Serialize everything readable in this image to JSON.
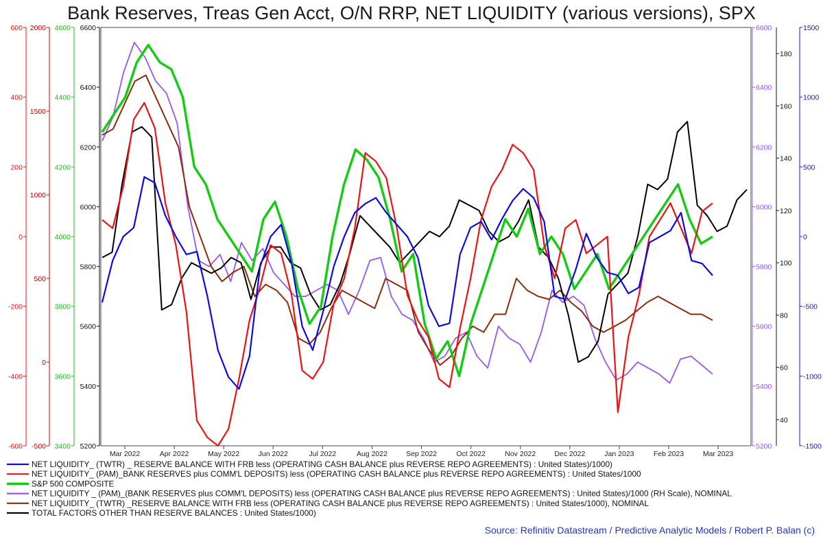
{
  "chart_data": {
    "type": "line",
    "title": "Bank Reserves, Treas Gen Acct, O/N RRP, NET LIQUIDITY (various versions), SPX",
    "x_labels": [
      "Mar 2022",
      "Apr 2022",
      "May 2022",
      "Jun 2022",
      "Jul 2022",
      "Aug 2022",
      "Sep 2022",
      "Oct 2022",
      "Nov 2022",
      "Dec 2022",
      "Jan 2023",
      "Feb 2023",
      "Mar 2023"
    ],
    "axes": [
      {
        "id": "a1",
        "side": "left",
        "color": "#ee1111",
        "min": -600,
        "max": 600,
        "ticks": [
          "600",
          "400",
          "200",
          "0",
          "-200",
          "-400",
          "-600"
        ]
      },
      {
        "id": "a2",
        "side": "left",
        "color": "#cc0000",
        "min": -500,
        "max": 2000,
        "ticks": [
          "2000",
          "1500",
          "1000",
          "500",
          "0",
          "-500"
        ]
      },
      {
        "id": "a3",
        "side": "left",
        "color": "#22bb22",
        "min": 3400,
        "max": 4600,
        "ticks": [
          "4600",
          "4400",
          "4200",
          "4000",
          "3800",
          "3600",
          "3400"
        ]
      },
      {
        "id": "a4",
        "side": "left",
        "color": "#111111",
        "min": 5200,
        "max": 6600,
        "ticks": [
          "6600",
          "6400",
          "6200",
          "6000",
          "5800",
          "5600",
          "5400",
          "5200"
        ]
      },
      {
        "id": "a5",
        "side": "right",
        "color": "#9955ee",
        "min": 5200,
        "max": 6600,
        "ticks": [
          "6600",
          "6400",
          "6200",
          "6000",
          "5800",
          "5600",
          "5400",
          "5200"
        ]
      },
      {
        "id": "a6",
        "side": "right",
        "color": "#111111",
        "min": 30,
        "max": 190,
        "ticks": [
          "180",
          "160",
          "140",
          "120",
          "100",
          "80",
          "60",
          "40"
        ]
      },
      {
        "id": "a7",
        "side": "right",
        "color": "#1111ee",
        "min": -1500,
        "max": 1500,
        "ticks": [
          "1500",
          "1000",
          "500",
          "0",
          "-500",
          "-1000",
          "-1500"
        ]
      }
    ],
    "series": [
      {
        "name": "NET LIQUIDITY_ (TWTR) _ RESERVE BALANCE WITH FRB less (OPERATING CASH BALANCE plus REVERSE REPO AGREEMENTS) : United States)/1000)",
        "color": "#0a0ae6",
        "width": 2.2,
        "axis": "a4",
        "values": [
          5680,
          5820,
          5900,
          5930,
          6100,
          6080,
          5970,
          5900,
          5840,
          5850,
          5700,
          5520,
          5430,
          5390,
          5500,
          5800,
          5900,
          5940,
          5810,
          5600,
          5520,
          5650,
          5800,
          5900,
          5980,
          6010,
          6030,
          5980,
          5940,
          5900,
          5830,
          5670,
          5600,
          5610,
          5840,
          5930,
          5950,
          5890,
          5960,
          6020,
          6060,
          6030,
          5950,
          5700,
          5690,
          5790,
          5910,
          5830,
          5780,
          5770,
          5710,
          5730,
          5880,
          5900,
          5920,
          5980,
          5820,
          5810,
          5770
        ]
      },
      {
        "name": "NET LIQUIDITY_ (PAM)_BANK RESERVES plus COMM'L DEPOSITS) less (OPERATING CASH BALANCE plus REVERSE REPO AGREEMENTS) : United States/1000",
        "color": "#ee1111",
        "width": 2.2,
        "axis": "a2",
        "values": [
          850,
          800,
          1050,
          1450,
          1550,
          1400,
          950,
          700,
          300,
          -350,
          -450,
          -500,
          -400,
          -100,
          250,
          450,
          700,
          650,
          400,
          -50,
          -100,
          0,
          350,
          500,
          800,
          1250,
          1200,
          1100,
          800,
          400,
          250,
          150,
          -100,
          -150,
          200,
          500,
          850,
          1050,
          1150,
          1300,
          1250,
          1150,
          700,
          500,
          800,
          850,
          650,
          700,
          750,
          -300,
          150,
          400,
          750,
          850,
          950,
          800,
          650,
          900,
          950
        ]
      },
      {
        "name": "S&P 500 COMPOSITE",
        "color": "#11cc11",
        "width": 3.4,
        "axis": "a3",
        "values": [
          4300,
          4350,
          4400,
          4500,
          4550,
          4500,
          4480,
          4400,
          4200,
          4150,
          4050,
          4000,
          3950,
          3900,
          4050,
          4100,
          4000,
          3850,
          3750,
          3800,
          4000,
          4150,
          4250,
          4220,
          4170,
          4050,
          3900,
          3950,
          3750,
          3650,
          3700,
          3600,
          3750,
          3850,
          3950,
          4050,
          4000,
          4080,
          3950,
          4000,
          3950,
          3850,
          3900,
          3950,
          3850,
          3900,
          3950,
          4000,
          4050,
          4100,
          4150,
          4050,
          3980,
          4000
        ]
      },
      {
        "name": "NET LIQUIDITY _ (PAM)_(BANK RESERVES plus COMM'L DEPOSITS) less (OPERATING CASH BALANCE plus REVERSE REPO AGREEMENTS) : United States)/1000 (RH Scale), NOMINAL",
        "color": "#9955ee",
        "width": 1.8,
        "axis": "a5",
        "values": [
          6220,
          6300,
          6450,
          6550,
          6500,
          6420,
          6380,
          6280,
          6000,
          5820,
          5800,
          5840,
          5750,
          5880,
          5820,
          5860,
          5780,
          5740,
          5700,
          5700,
          5720,
          5740,
          5720,
          5640,
          5720,
          5820,
          5830,
          5700,
          5640,
          5620,
          5560,
          5480,
          5500,
          5560,
          5580,
          5500,
          5460,
          5600,
          5560,
          5540,
          5480,
          5580,
          5720,
          5680,
          5700,
          5670,
          5560,
          5480,
          5420,
          5440,
          5480,
          5460,
          5440,
          5410,
          5490,
          5500,
          5470,
          5440
        ]
      },
      {
        "name": "NET LIQUIDITY_ (TWTR) _RESERVE BALANCE WITH FRB less (OPERATING CASH BALANCE plus REVERSE REPO AGREEMENTS) : United States/1000), NOMINAL",
        "color": "#8b2b0b",
        "width": 2.0,
        "axis": "a4",
        "values": [
          6240,
          6260,
          6340,
          6420,
          6440,
          6360,
          6280,
          6200,
          6000,
          5900,
          5800,
          5750,
          5780,
          5800,
          5700,
          5740,
          5720,
          5680,
          5560,
          5540,
          5580,
          5660,
          5720,
          5700,
          5680,
          5660,
          5760,
          5740,
          5720,
          5580,
          5520,
          5470,
          5500,
          5560,
          5600,
          5580,
          5640,
          5640,
          5760,
          5720,
          5700,
          5690,
          5720,
          5680,
          5650,
          5600,
          5580,
          5600,
          5620,
          5650,
          5680,
          5700,
          5680,
          5660,
          5640,
          5640,
          5620
        ]
      },
      {
        "name": "TOTAL FACTORS OTHER THAN RESERVE BALANCES : United States/1000)",
        "color": "#000000",
        "width": 2.0,
        "axis": "a6",
        "values": [
          102,
          104,
          130,
          150,
          152,
          148,
          82,
          84,
          94,
          100,
          98,
          96,
          98,
          102,
          100,
          86,
          100,
          106,
          106,
          100,
          98,
          88,
          82,
          84,
          92,
          104,
          118,
          114,
          110,
          106,
          100,
          104,
          108,
          112,
          110,
          114,
          124,
          122,
          120,
          112,
          108,
          110,
          116,
          124,
          106,
          102,
          94,
          80,
          62,
          64,
          70,
          88,
          92,
          96,
          110,
          130,
          128,
          132,
          150,
          154,
          122,
          118,
          112,
          114,
          124,
          128
        ]
      }
    ]
  },
  "legend": [
    {
      "label": "NET LIQUIDITY_ (TWTR) _ RESERVE BALANCE WITH FRB less (OPERATING CASH BALANCE plus REVERSE REPO AGREEMENTS) : United States)/1000)",
      "color": "#0a0ae6"
    },
    {
      "label": "NET LIQUIDITY_ (PAM)_BANK RESERVES plus COMM'L DEPOSITS) less (OPERATING CASH BALANCE plus REVERSE REPO AGREEMENTS) : United States/1000",
      "color": "#ee1111"
    },
    {
      "label": "S&P 500 COMPOSITE",
      "color": "#11cc11"
    },
    {
      "label": "NET LIQUIDITY _ (PAM)_(BANK RESERVES plus COMM'L DEPOSITS) less (OPERATING CASH BALANCE plus REVERSE REPO AGREEMENTS) : United States)/1000 (RH Scale), NOMINAL",
      "color": "#9955ee"
    },
    {
      "label": "NET LIQUIDITY_ (TWTR) _RESERVE BALANCE WITH FRB less (OPERATING CASH BALANCE plus REVERSE REPO AGREEMENTS) : United States/1000), NOMINAL",
      "color": "#8b2b0b"
    },
    {
      "label": "TOTAL FACTORS OTHER THAN RESERVE BALANCES : United States/1000)",
      "color": "#000000"
    }
  ],
  "source": "Source: Refinitiv Datastream / Predictive Analytic Models / Robert P. Balan (c)"
}
